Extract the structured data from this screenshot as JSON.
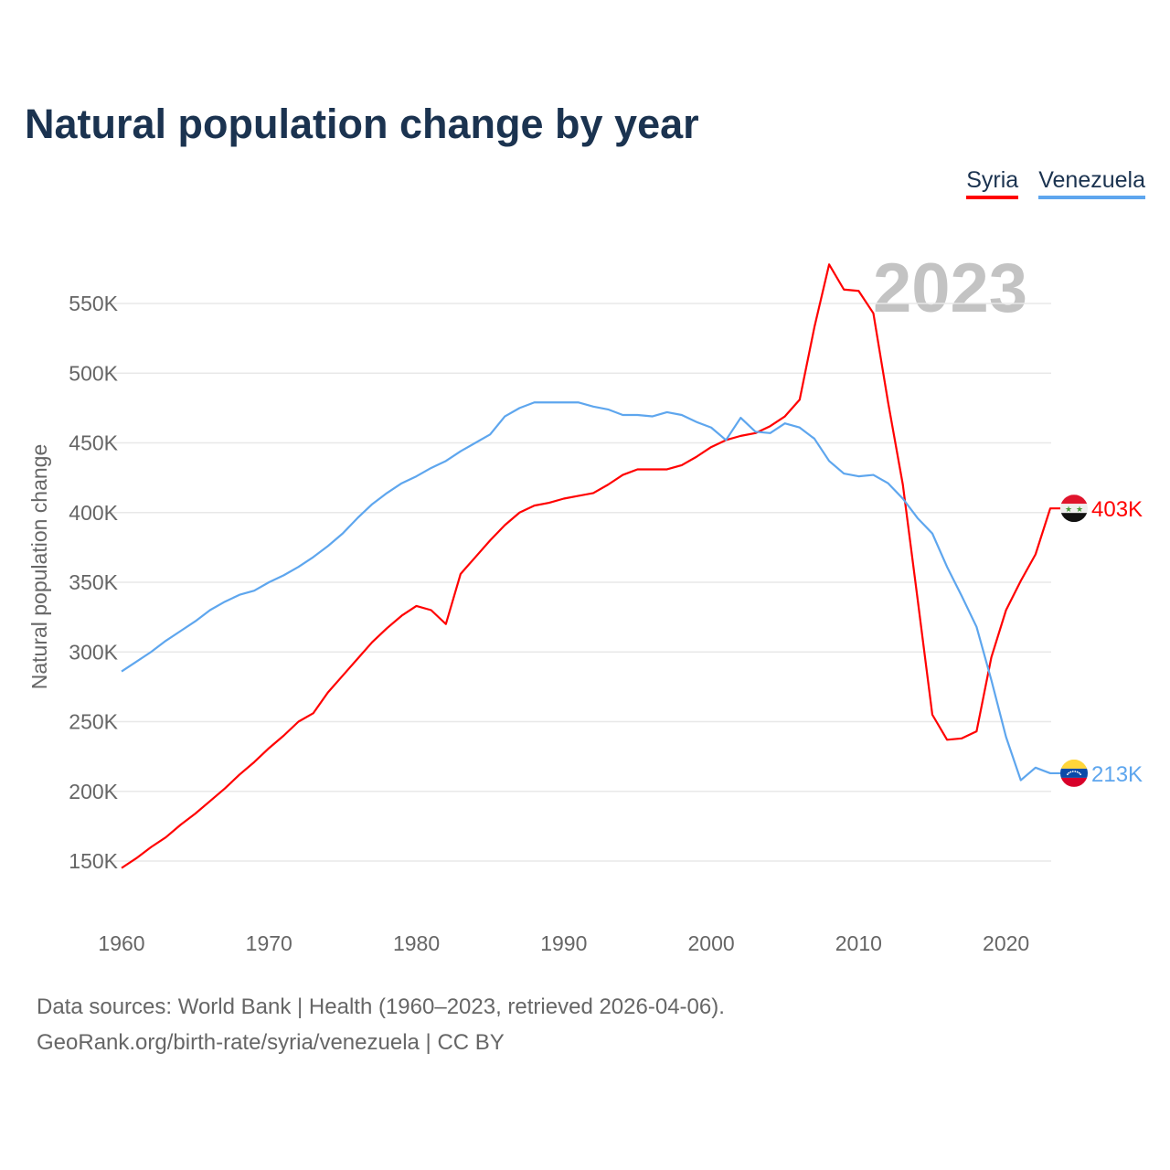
{
  "title": "Natural population change by year",
  "current_year": "2023",
  "footer": {
    "line1": "Data sources: World Bank | Health (1960–2023, retrieved 2026-04-06).",
    "line2": "GeoRank.org/birth-rate/syria/venezuela | CC BY"
  },
  "chart_data": {
    "type": "line",
    "title": "Natural population change by year",
    "xlabel": "",
    "ylabel": "Natural population change",
    "xlim": [
      1960,
      2023
    ],
    "ylim": [
      150,
      550
    ],
    "y_unit": "thousands",
    "grid": true,
    "legend_position": "top-right",
    "x_ticks": [
      "1960",
      "1970",
      "1980",
      "1990",
      "2000",
      "2010",
      "2020"
    ],
    "y_ticks": [
      "150K",
      "200K",
      "250K",
      "300K",
      "350K",
      "400K",
      "450K",
      "500K",
      "550K"
    ],
    "x": [
      1960,
      1961,
      1962,
      1963,
      1964,
      1965,
      1966,
      1967,
      1968,
      1969,
      1970,
      1971,
      1972,
      1973,
      1974,
      1975,
      1976,
      1977,
      1978,
      1979,
      1980,
      1981,
      1982,
      1983,
      1984,
      1985,
      1986,
      1987,
      1988,
      1989,
      1990,
      1991,
      1992,
      1993,
      1994,
      1995,
      1996,
      1997,
      1998,
      1999,
      2000,
      2001,
      2002,
      2003,
      2004,
      2005,
      2006,
      2007,
      2008,
      2009,
      2010,
      2011,
      2012,
      2013,
      2014,
      2015,
      2016,
      2017,
      2018,
      2019,
      2020,
      2021,
      2022,
      2023
    ],
    "series": [
      {
        "name": "Syria",
        "color": "#ff0000",
        "end_label": "403K",
        "flag": "syria-flag",
        "values": [
          145,
          152,
          160,
          167,
          176,
          184,
          193,
          202,
          212,
          221,
          231,
          240,
          250,
          256,
          271,
          283,
          295,
          307,
          317,
          326,
          333,
          330,
          320,
          356,
          368,
          380,
          391,
          400,
          405,
          407,
          410,
          412,
          414,
          420,
          427,
          431,
          431,
          431,
          434,
          440,
          447,
          452,
          455,
          457,
          462,
          469,
          481,
          533,
          578,
          560,
          559,
          543,
          479,
          420,
          338,
          255,
          237,
          238,
          243,
          296,
          330,
          351,
          370,
          403
        ]
      },
      {
        "name": "Venezuela",
        "color": "#5ea6ee",
        "end_label": "213K",
        "flag": "venezuela-flag",
        "values": [
          286,
          293,
          300,
          308,
          315,
          322,
          330,
          336,
          341,
          344,
          350,
          355,
          361,
          368,
          376,
          385,
          396,
          406,
          414,
          421,
          426,
          432,
          437,
          444,
          450,
          456,
          469,
          475,
          479,
          479,
          479,
          479,
          476,
          474,
          470,
          470,
          469,
          472,
          470,
          465,
          461,
          452,
          468,
          458,
          457,
          464,
          461,
          453,
          437,
          428,
          426,
          427,
          421,
          410,
          396,
          385,
          361,
          340,
          318,
          280,
          239,
          208,
          217,
          213
        ]
      }
    ]
  }
}
